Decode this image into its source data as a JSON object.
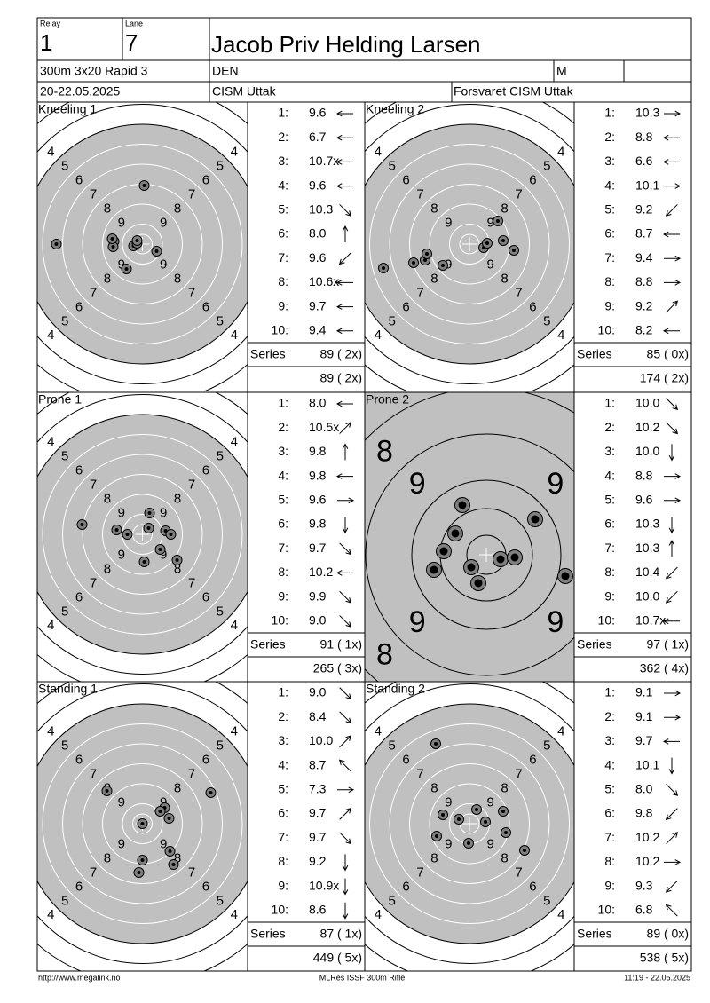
{
  "header": {
    "relay_label": "Relay",
    "relay": "1",
    "lane_label": "Lane",
    "lane": "7",
    "name": "Jacob Priv Helding Larsen",
    "event": "300m 3x20 Rapid 3",
    "nation": "DEN",
    "gender": "M",
    "date": "20-22.05.2025",
    "club": "CISM Uttak",
    "team": "Forsvaret CISM Uttak"
  },
  "panels": [
    {
      "title": "Kneeling 1",
      "rings": [
        "4",
        "5",
        "6",
        "7",
        "8",
        "9"
      ],
      "shots": [
        {
          "no": "1:",
          "score": "9.6"
        },
        {
          "no": "2:",
          "score": "6.7"
        },
        {
          "no": "3:",
          "score": "10.7x"
        },
        {
          "no": "4:",
          "score": "9.6"
        },
        {
          "no": "5:",
          "score": "10.3"
        },
        {
          "no": "6:",
          "score": "8.0"
        },
        {
          "no": "7:",
          "score": "9.6"
        },
        {
          "no": "8:",
          "score": "10.6x"
        },
        {
          "no": "9:",
          "score": "9.7"
        },
        {
          "no": "10:",
          "score": "9.4"
        }
      ],
      "series_label": "Series",
      "series": "89 ( 2x)",
      "total": "89 ( 2x)"
    },
    {
      "title": "Kneeling 2",
      "rings": [
        "4",
        "5",
        "6",
        "7",
        "8",
        "9"
      ],
      "shots": [
        {
          "no": "1:",
          "score": "10.3"
        },
        {
          "no": "2:",
          "score": "8.8"
        },
        {
          "no": "3:",
          "score": "6.6"
        },
        {
          "no": "4:",
          "score": "10.1"
        },
        {
          "no": "5:",
          "score": "9.2"
        },
        {
          "no": "6:",
          "score": "8.7"
        },
        {
          "no": "7:",
          "score": "9.4"
        },
        {
          "no": "8:",
          "score": "8.8"
        },
        {
          "no": "9:",
          "score": "9.2"
        },
        {
          "no": "10:",
          "score": "8.2"
        }
      ],
      "series_label": "Series",
      "series": "85 ( 0x)",
      "total": "174 ( 2x)"
    },
    {
      "title": "Prone 1",
      "rings": [
        "4",
        "5",
        "6",
        "7",
        "8",
        "9"
      ],
      "shots": [
        {
          "no": "1:",
          "score": "8.0"
        },
        {
          "no": "2:",
          "score": "10.5x"
        },
        {
          "no": "3:",
          "score": "9.8"
        },
        {
          "no": "4:",
          "score": "9.8"
        },
        {
          "no": "5:",
          "score": "9.6"
        },
        {
          "no": "6:",
          "score": "9.8"
        },
        {
          "no": "7:",
          "score": "9.7"
        },
        {
          "no": "8:",
          "score": "10.2"
        },
        {
          "no": "9:",
          "score": "9.9"
        },
        {
          "no": "10:",
          "score": "9.0"
        }
      ],
      "series_label": "Series",
      "series": "91 ( 1x)",
      "total": "265 ( 3x)"
    },
    {
      "title": "Prone 2",
      "rings": [
        "8",
        "9"
      ],
      "shots": [
        {
          "no": "1:",
          "score": "10.0"
        },
        {
          "no": "2:",
          "score": "10.2"
        },
        {
          "no": "3:",
          "score": "10.0"
        },
        {
          "no": "4:",
          "score": "8.8"
        },
        {
          "no": "5:",
          "score": "9.6"
        },
        {
          "no": "6:",
          "score": "10.3"
        },
        {
          "no": "7:",
          "score": "10.3"
        },
        {
          "no": "8:",
          "score": "10.4"
        },
        {
          "no": "9:",
          "score": "10.0"
        },
        {
          "no": "10:",
          "score": "10.7x"
        }
      ],
      "series_label": "Series",
      "series": "97 ( 1x)",
      "total": "362 ( 4x)"
    },
    {
      "title": "Standing 1",
      "rings": [
        "4",
        "5",
        "6",
        "7",
        "8",
        "9"
      ],
      "shots": [
        {
          "no": "1:",
          "score": "9.0"
        },
        {
          "no": "2:",
          "score": "8.4"
        },
        {
          "no": "3:",
          "score": "10.0"
        },
        {
          "no": "4:",
          "score": "8.7"
        },
        {
          "no": "5:",
          "score": "7.3"
        },
        {
          "no": "6:",
          "score": "9.7"
        },
        {
          "no": "7:",
          "score": "9.7"
        },
        {
          "no": "8:",
          "score": "9.2"
        },
        {
          "no": "9:",
          "score": "10.9x"
        },
        {
          "no": "10:",
          "score": "8.6"
        }
      ],
      "series_label": "Series",
      "series": "87 ( 1x)",
      "total": "449 ( 5x)"
    },
    {
      "title": "Standing 2",
      "rings": [
        "4",
        "5",
        "6",
        "7",
        "8",
        "9"
      ],
      "shots": [
        {
          "no": "1:",
          "score": "9.1"
        },
        {
          "no": "2:",
          "score": "9.1"
        },
        {
          "no": "3:",
          "score": "9.7"
        },
        {
          "no": "4:",
          "score": "10.1"
        },
        {
          "no": "5:",
          "score": "8.0"
        },
        {
          "no": "6:",
          "score": "9.8"
        },
        {
          "no": "7:",
          "score": "10.2"
        },
        {
          "no": "8:",
          "score": "10.2"
        },
        {
          "no": "9:",
          "score": "9.3"
        },
        {
          "no": "10:",
          "score": "6.8"
        }
      ],
      "series_label": "Series",
      "series": "89 ( 0x)",
      "total": "538 ( 5x)"
    }
  ],
  "footer": {
    "left": "http://www.megalink.no",
    "center": "MLRes ISSF 300m Rifle",
    "right": "11:19 - 22.05.2025"
  }
}
